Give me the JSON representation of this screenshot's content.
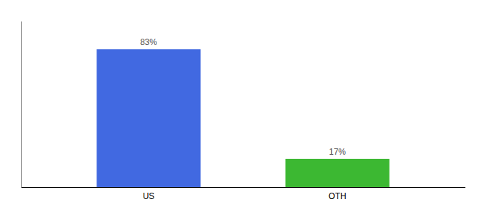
{
  "chart_data": {
    "type": "bar",
    "categories": [
      "US",
      "OTH"
    ],
    "values": [
      83,
      17
    ],
    "value_labels": [
      "83%",
      "17%"
    ],
    "colors": [
      "#4169e1",
      "#3cb832"
    ],
    "ylim": [
      0,
      100
    ],
    "grid": false,
    "data_labels": true,
    "tick_labels": "x"
  }
}
